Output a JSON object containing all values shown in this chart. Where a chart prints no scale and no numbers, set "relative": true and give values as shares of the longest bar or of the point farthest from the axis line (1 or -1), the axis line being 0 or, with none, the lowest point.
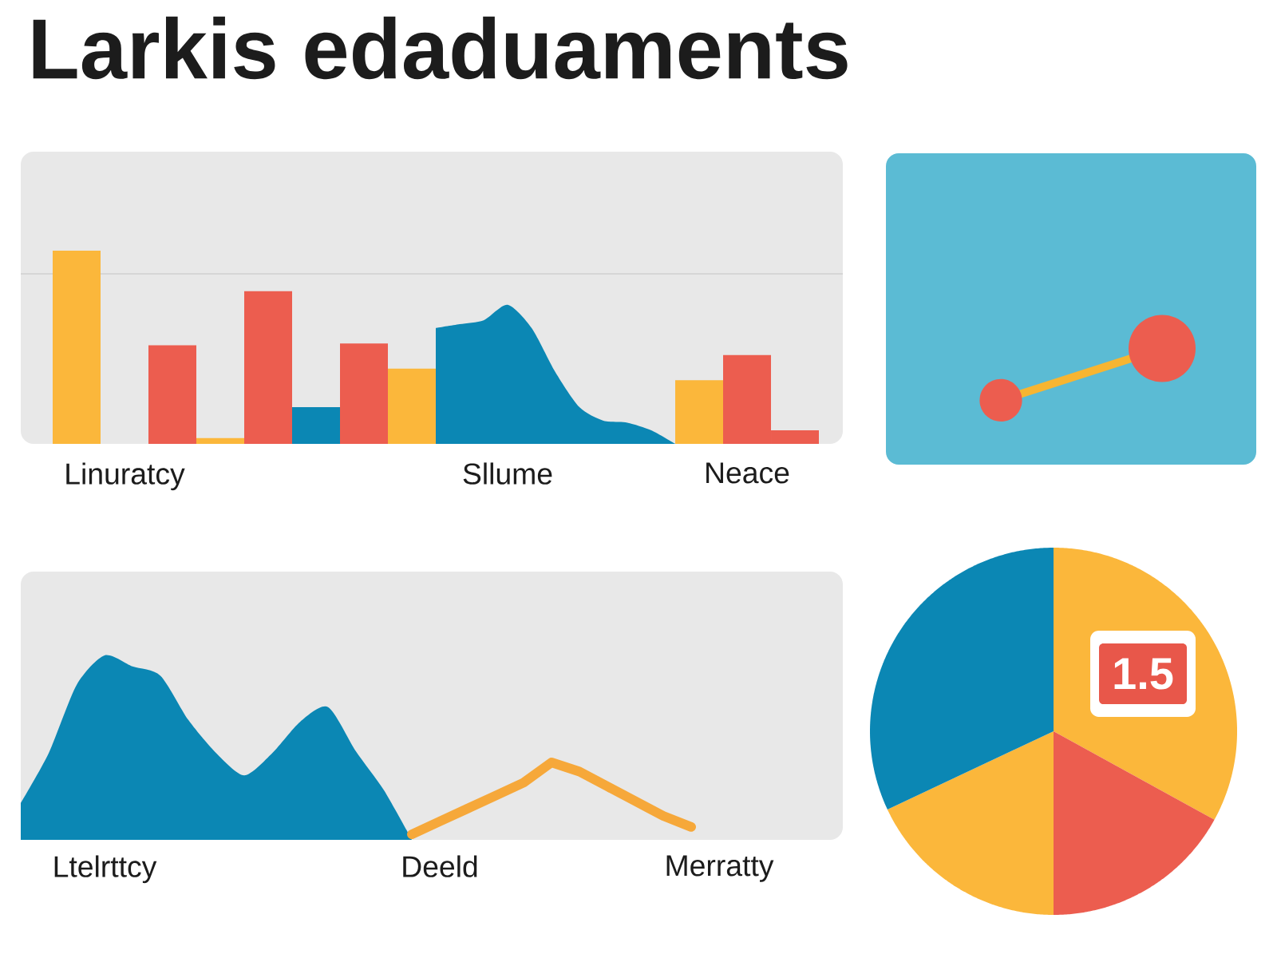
{
  "chart_data": [
    {
      "type": "bar",
      "title": "Larkis edaduaments",
      "relative": true,
      "categories": [
        null,
        null,
        "Linuratcy",
        null,
        null,
        null,
        null,
        null,
        null,
        null,
        null,
        null,
        null,
        null,
        null,
        null,
        null,
        null,
        "Sllume",
        null,
        null,
        null,
        null,
        null,
        null,
        null,
        null,
        null,
        "Neace",
        null,
        null
      ],
      "series": [
        {
          "type": "bar",
          "values": [
            1,
            null,
            null,
            null,
            0.51,
            null,
            0.03,
            null,
            0.79,
            null,
            0.19,
            null,
            0.52,
            null,
            0.39,
            null,
            null,
            null,
            null,
            null,
            null,
            null,
            null,
            null,
            null,
            null,
            0.33,
            null,
            0.46,
            null,
            0.07
          ],
          "colors": [
            "#fbb73b",
            null,
            null,
            null,
            "#ec5d4f",
            null,
            "#fbb73b",
            null,
            "#ec5d4f",
            null,
            "#0b87b4",
            null,
            "#ec5d4f",
            null,
            "#fbb73b",
            null,
            null,
            null,
            null,
            null,
            null,
            null,
            null,
            null,
            null,
            null,
            "#fbb73b",
            null,
            "#ec5d4f",
            null,
            "#ec5d4f"
          ]
        },
        {
          "type": "area",
          "color": "#0b87b4",
          "values": [
            null,
            null,
            null,
            null,
            null,
            null,
            null,
            null,
            null,
            null,
            null,
            null,
            null,
            null,
            null,
            0.6,
            0.62,
            0.64,
            0.72,
            0.6,
            0.37,
            0.19,
            0.12,
            0.11,
            0.07,
            0,
            null,
            null,
            null,
            null,
            null
          ]
        }
      ],
      "ref_lines": [
        {
          "axis": "y",
          "value": 0.88,
          "color": "#d6d6d6"
        }
      ]
    },
    {
      "type": "area",
      "relative": true,
      "categories": [
        null,
        null,
        null,
        "Ltelrttcy",
        null,
        null,
        null,
        null,
        null,
        null,
        null,
        null,
        null,
        null,
        null,
        "Deeld",
        null,
        null,
        null,
        null,
        null,
        null,
        null,
        null,
        null,
        "Merratty",
        null,
        null,
        null,
        null
      ],
      "series": [
        {
          "type": "area",
          "color": "#0b87b4",
          "values": [
            0.2,
            0.47,
            0.84,
            1,
            0.94,
            0.89,
            0.65,
            0.47,
            0.35,
            0.47,
            0.64,
            0.72,
            0.48,
            0.27,
            0,
            null,
            null,
            null,
            null,
            null,
            null,
            null,
            null,
            null,
            null,
            null,
            null,
            null,
            null,
            null
          ]
        },
        {
          "type": "line",
          "color": "#f6a83a",
          "values": [
            null,
            null,
            null,
            null,
            null,
            null,
            null,
            null,
            null,
            null,
            null,
            null,
            null,
            null,
            0.03,
            0.1,
            0.17,
            0.24,
            0.31,
            0.42,
            0.37,
            0.29,
            0.21,
            0.13,
            0.07,
            null,
            null,
            null,
            null,
            null
          ]
        }
      ]
    },
    {
      "type": "pie",
      "categories": [
        null,
        null,
        null,
        null
      ],
      "values": [
        33,
        17,
        18,
        32
      ],
      "colors": [
        "#fbb73b",
        "#ec5d4f",
        "#fbb73b",
        "#0b87b4"
      ],
      "annotations": [
        "1.5"
      ]
    }
  ]
}
